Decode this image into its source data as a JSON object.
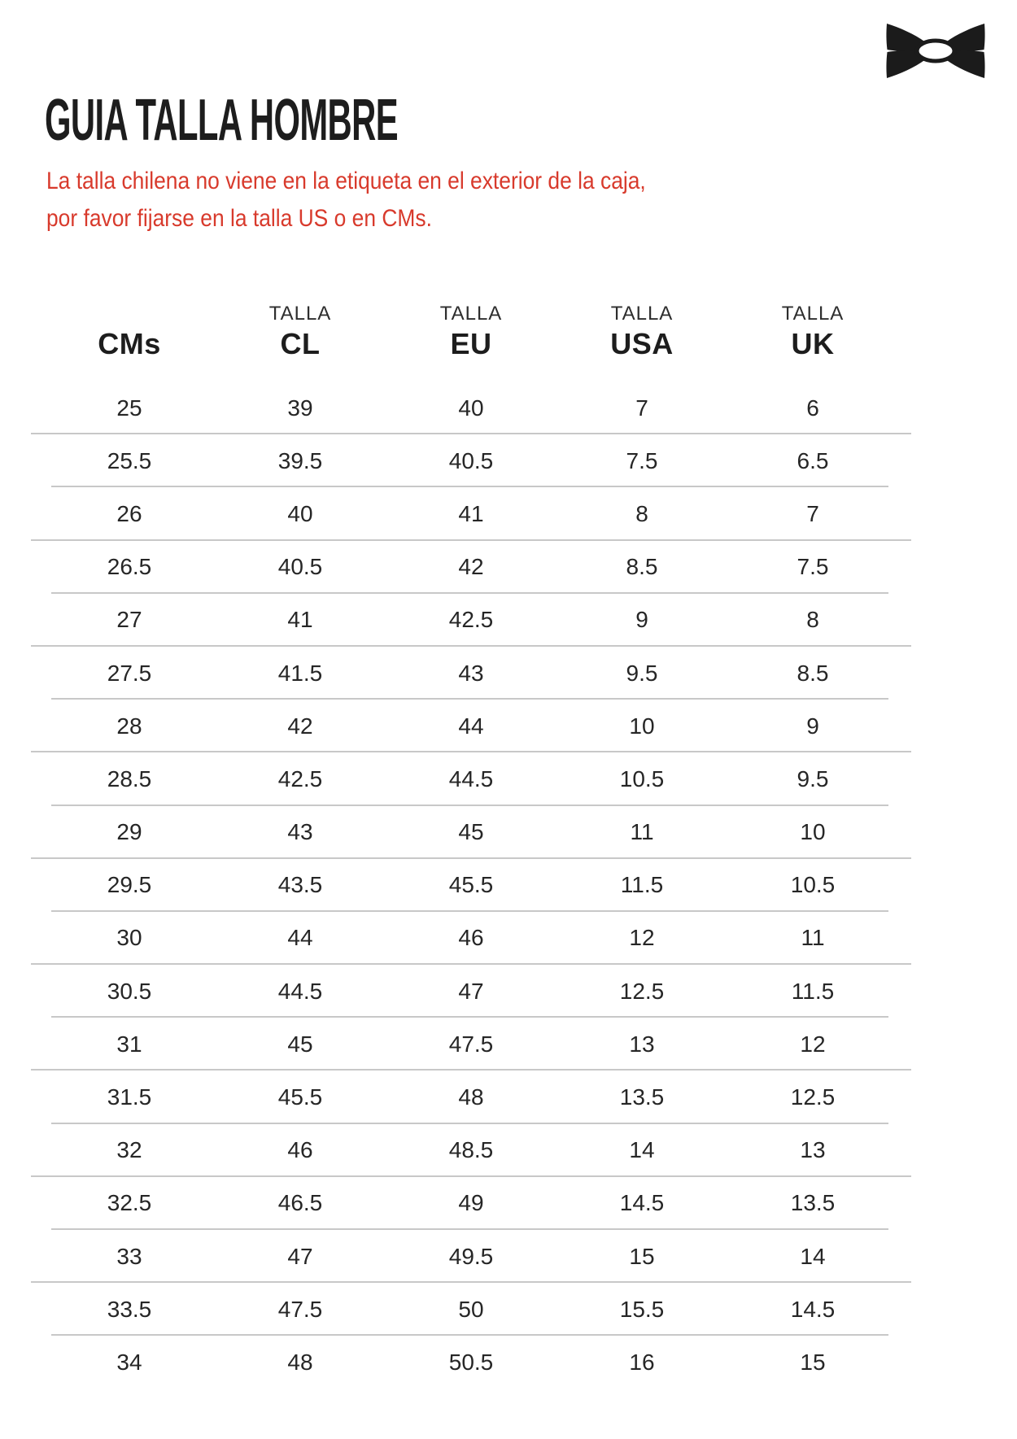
{
  "header": {
    "title": "GUIA TALLA HOMBRE",
    "note_line1": "La talla chilena no viene en la etiqueta en el exterior de la caja,",
    "note_line2": "por favor fijarse en la talla US o en CMs."
  },
  "brand": {
    "logo": "under-armour-logo"
  },
  "colors": {
    "note_red": "#d83a2c",
    "text_ink": "#1d1d1d",
    "number_text": "#262626",
    "divider_gray": "#c8c8c8",
    "logo_black": "#1b1b1b"
  },
  "size_table": {
    "columns": [
      {
        "top": "",
        "label": "CMs"
      },
      {
        "top": "TALLA",
        "label": "CL"
      },
      {
        "top": "TALLA",
        "label": "EU"
      },
      {
        "top": "TALLA",
        "label": "USA"
      },
      {
        "top": "TALLA",
        "label": "UK"
      }
    ],
    "rows": [
      [
        "25",
        "39",
        "40",
        "7",
        "6"
      ],
      [
        "25.5",
        "39.5",
        "40.5",
        "7.5",
        "6.5"
      ],
      [
        "26",
        "40",
        "41",
        "8",
        "7"
      ],
      [
        "26.5",
        "40.5",
        "42",
        "8.5",
        "7.5"
      ],
      [
        "27",
        "41",
        "42.5",
        "9",
        "8"
      ],
      [
        "27.5",
        "41.5",
        "43",
        "9.5",
        "8.5"
      ],
      [
        "28",
        "42",
        "44",
        "10",
        "9"
      ],
      [
        "28.5",
        "42.5",
        "44.5",
        "10.5",
        "9.5"
      ],
      [
        "29",
        "43",
        "45",
        "11",
        "10"
      ],
      [
        "29.5",
        "43.5",
        "45.5",
        "11.5",
        "10.5"
      ],
      [
        "30",
        "44",
        "46",
        "12",
        "11"
      ],
      [
        "30.5",
        "44.5",
        "47",
        "12.5",
        "11.5"
      ],
      [
        "31",
        "45",
        "47.5",
        "13",
        "12"
      ],
      [
        "31.5",
        "45.5",
        "48",
        "13.5",
        "12.5"
      ],
      [
        "32",
        "46",
        "48.5",
        "14",
        "13"
      ],
      [
        "32.5",
        "46.5",
        "49",
        "14.5",
        "13.5"
      ],
      [
        "33",
        "47",
        "49.5",
        "15",
        "14"
      ],
      [
        "33.5",
        "47.5",
        "50",
        "15.5",
        "14.5"
      ],
      [
        "34",
        "48",
        "50.5",
        "16",
        "15"
      ]
    ]
  }
}
